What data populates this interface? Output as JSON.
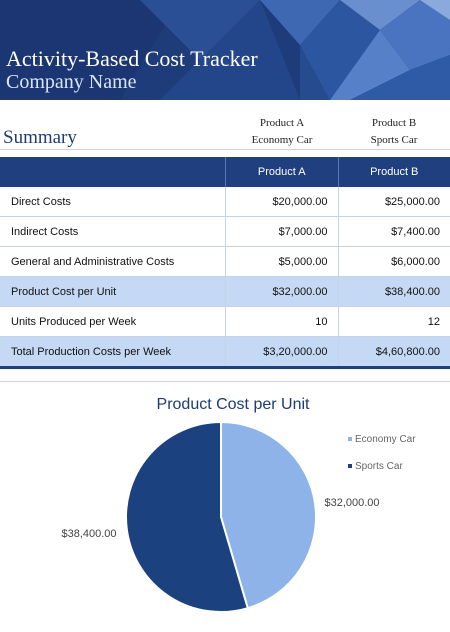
{
  "header": {
    "title": "Activity-Based Cost Tracker",
    "company": "Company Name"
  },
  "summary_label": "Summary",
  "products": [
    {
      "name": "Product A",
      "desc": "Economy Car"
    },
    {
      "name": "Product B",
      "desc": "Sports Car"
    }
  ],
  "table": {
    "columns": [
      "",
      "Product A",
      "Product B"
    ],
    "rows": [
      {
        "label": "Direct Costs",
        "a": "$20,000.00",
        "b": "$25,000.00"
      },
      {
        "label": "Indirect Costs",
        "a": "$7,000.00",
        "b": "$7,400.00"
      },
      {
        "label": "General and Administrative Costs",
        "a": "$5,000.00",
        "b": "$6,000.00"
      },
      {
        "label": "Product Cost per Unit",
        "a": "$32,000.00",
        "b": "$38,400.00"
      },
      {
        "label": "Units Produced per Week",
        "a": "10",
        "b": "12"
      },
      {
        "label": "Total Production Costs per Week",
        "a": "$3,20,000.00",
        "b": "$4,60,800.00"
      }
    ]
  },
  "colors": {
    "banner": "#1f3f7e",
    "header_row": "#1f3f7e",
    "highlight_row": "#c5d8f4",
    "economy": "#8db3e8",
    "sports": "#1c417f"
  },
  "chart_data": {
    "type": "pie",
    "title": "Product Cost per Unit",
    "categories": [
      "Economy Car",
      "Sports Car"
    ],
    "values": [
      32000,
      38400
    ],
    "labels": [
      "$32,000.00",
      "$38,400.00"
    ],
    "legend": "right"
  }
}
